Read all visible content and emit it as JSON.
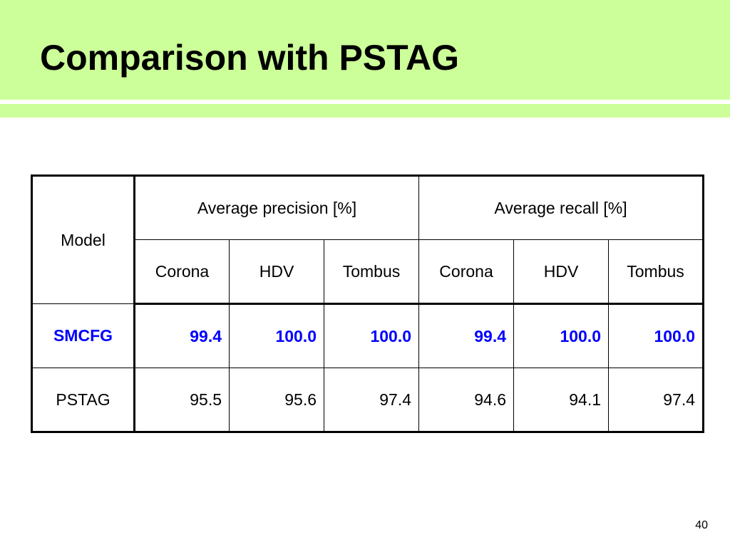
{
  "slide": {
    "title": "Comparison with PSTAG",
    "page_number": "40"
  },
  "table": {
    "model_header": "Model",
    "group_headers": [
      "Average precision [%]",
      "Average recall [%]"
    ],
    "sub_headers": [
      "Corona",
      "HDV",
      "Tombus",
      "Corona",
      "HDV",
      "Tombus"
    ],
    "rows": [
      {
        "model": "SMCFG",
        "values": [
          "99.4",
          "100.0",
          "100.0",
          "99.4",
          "100.0",
          "100.0"
        ],
        "highlight": true
      },
      {
        "model": "PSTAG",
        "values": [
          "95.5",
          "95.6",
          "97.4",
          "94.6",
          "94.1",
          "97.4"
        ],
        "highlight": false
      }
    ]
  },
  "colors": {
    "title_band": "#ccff99",
    "highlight_text": "#0000ff"
  }
}
